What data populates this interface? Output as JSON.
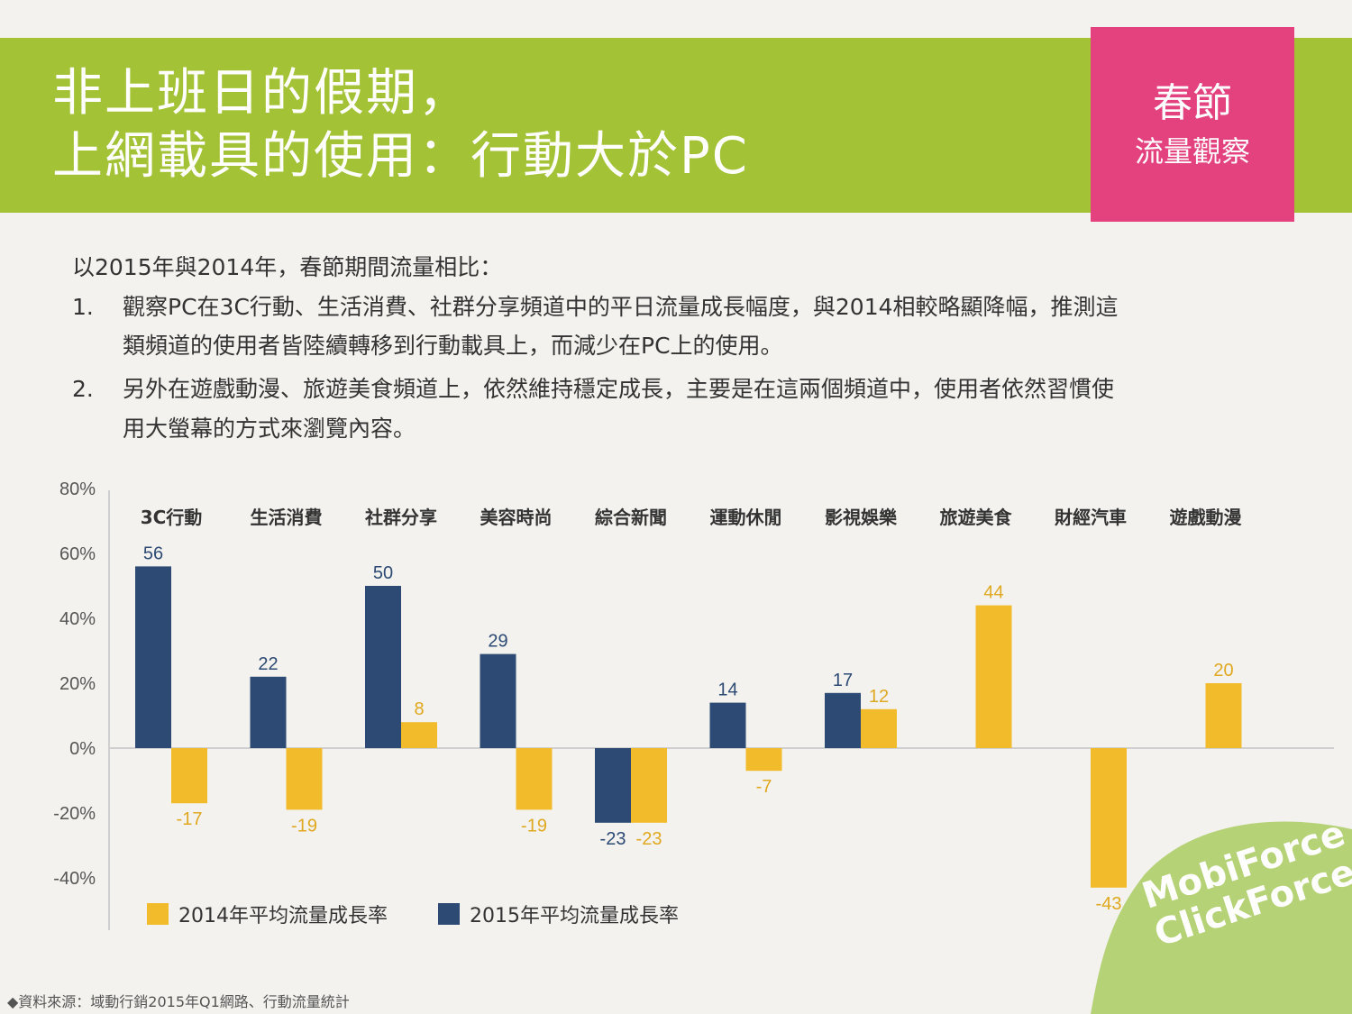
{
  "slide": {
    "title_line_1": "非上班日的假期，",
    "title_line_2": "上網載具的使用：行動大於PC",
    "tag_line_1": "春節",
    "tag_line_2": "流量觀察"
  },
  "body": {
    "intro": "以2015年與2014年，春節期間流量相比：",
    "item1_num": "1.",
    "item1_line1": "觀察PC在3C行動、生活消費、社群分享頻道中的平日流量成長幅度，與2014相較略顯降幅，推測這",
    "item1_line2": "類頻道的使用者皆陸續轉移到行動載具上，而減少在PC上的使用。",
    "item2_num": "2.",
    "item2_line1": "另外在遊戲動漫、旅遊美食頻道上，依然維持穩定成長，主要是在這兩個頻道中，使用者依然習慣使",
    "item2_line2": "用大螢幕的方式來瀏覽內容。"
  },
  "chart_data": {
    "type": "bar",
    "categories": [
      "3C行動",
      "生活消費",
      "社群分享",
      "美容時尚",
      "綜合新聞",
      "運動休閒",
      "影視娛樂",
      "旅遊美食",
      "財經汽車",
      "遊戲動漫"
    ],
    "series": [
      {
        "name": "2015年平均流量成長率",
        "color": "#2c4a74",
        "values": [
          56,
          22,
          50,
          29,
          -23,
          14,
          17,
          null,
          null,
          null
        ]
      },
      {
        "name": "2014年平均流量成長率",
        "color": "#f2bb2b",
        "values": [
          -17,
          -19,
          8,
          -19,
          -23,
          -7,
          12,
          44,
          -43,
          20
        ]
      }
    ],
    "y_ticks": [
      "80%",
      "60%",
      "40%",
      "20%",
      "0%",
      "-20%",
      "-40%"
    ],
    "ylim": [
      -40,
      80
    ],
    "legend": [
      {
        "label": "2014年平均流量成長率",
        "color": "#f2bb2b"
      },
      {
        "label": "2015年平均流量成長率",
        "color": "#2c4a74"
      }
    ]
  },
  "footer": {
    "source": "◆資料來源：域動行銷2015年Q1網路、行動流量統計",
    "logo_line_1": "MobiForce",
    "logo_line_2": "ClickForce"
  },
  "colors": {
    "header_green": "#a3c236",
    "tag_pink": "#e4417f",
    "bar_2015": "#2c4a74",
    "bar_2014": "#f2bb2b"
  }
}
